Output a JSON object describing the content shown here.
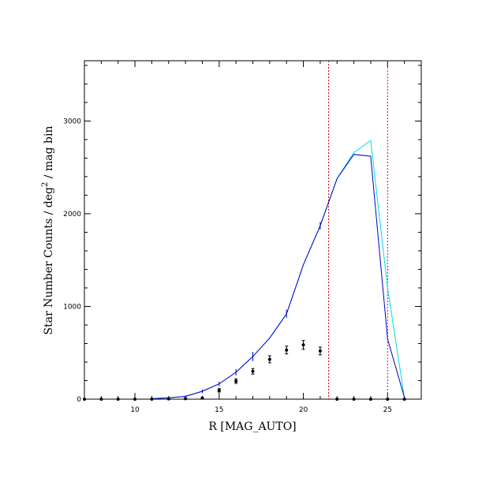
{
  "chart_data": {
    "type": "line",
    "xlabel": "R [MAG_AUTO]",
    "ylabel_main": "Star Number Counts / deg",
    "ylabel_sup": "2",
    "ylabel_tail": " / mag bin",
    "xlim": [
      7,
      27
    ],
    "ylim": [
      0,
      3650
    ],
    "grid": false,
    "x_tick_labels": [
      "10",
      "15",
      "20",
      "25"
    ],
    "x_major_ticks": [
      10,
      15,
      20,
      25
    ],
    "y_tick_labels": [
      "0",
      "1000",
      "2000",
      "3000"
    ],
    "y_major_ticks": [
      0,
      1000,
      2000,
      3000
    ],
    "vertical_lines": [
      {
        "x": 21.5,
        "color": "#cc0000",
        "style": "dotted"
      },
      {
        "x": 25.0,
        "color": "#bb00bb",
        "style": "dotted"
      }
    ],
    "series": [
      {
        "color": "#00dddd",
        "style": "line",
        "x": [
          11,
          12,
          13,
          14,
          15,
          16,
          17,
          18,
          19,
          20,
          21,
          22,
          23,
          24,
          25,
          26
        ],
        "y": [
          5,
          15,
          30,
          85,
          165,
          290,
          460,
          660,
          920,
          1450,
          1870,
          2380,
          2660,
          2790,
          1200,
          20
        ]
      },
      {
        "color": "#0000cc",
        "style": "line_with_errorbars",
        "x": [
          11,
          12,
          13,
          14,
          15,
          16,
          17,
          18,
          19,
          20,
          21,
          22,
          23,
          24,
          25,
          26
        ],
        "y": [
          5,
          15,
          30,
          85,
          165,
          290,
          460,
          660,
          920,
          1450,
          1870,
          2380,
          2640,
          2620,
          650,
          20
        ],
        "err": [
          5,
          8,
          10,
          20,
          25,
          35,
          50,
          0,
          45,
          0,
          40,
          0,
          0,
          0,
          0,
          0
        ]
      },
      {
        "color": "#000000",
        "style": "points_with_errorbars",
        "x": [
          7,
          8,
          9,
          10,
          11,
          12,
          13,
          14,
          15,
          16,
          17,
          18,
          19,
          20,
          21,
          22,
          23,
          24,
          25,
          26
        ],
        "y": [
          0,
          0,
          0,
          0,
          0,
          3,
          5,
          12,
          95,
          195,
          300,
          430,
          530,
          585,
          520,
          0,
          0,
          0,
          0,
          0
        ],
        "err": [
          0,
          0,
          0,
          0,
          0,
          2,
          3,
          6,
          18,
          25,
          30,
          38,
          42,
          48,
          42,
          0,
          0,
          0,
          0,
          0
        ]
      }
    ]
  }
}
